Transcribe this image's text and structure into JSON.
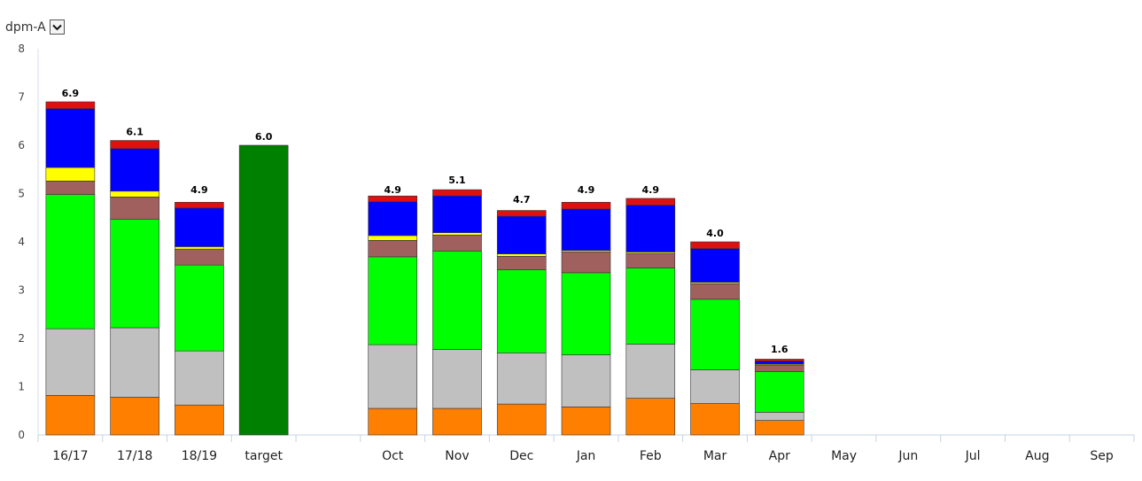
{
  "selector": {
    "label": "dpm-A"
  },
  "chart_data": {
    "type": "bar",
    "stacked": true,
    "categories": [
      "16/17",
      "17/18",
      "18/19",
      "target",
      "",
      "Oct",
      "Nov",
      "Dec",
      "Jan",
      "Feb",
      "Mar",
      "Apr",
      "May",
      "Jun",
      "Jul",
      "Aug",
      "Sep"
    ],
    "ylim": [
      0,
      8
    ],
    "yticks": [
      0,
      1,
      2,
      3,
      4,
      5,
      6,
      7,
      8
    ],
    "grid": false,
    "legend": "none",
    "series": [
      {
        "color": "#ff7f00",
        "values": [
          0.82,
          0.78,
          0.62,
          null,
          null,
          0.55,
          0.55,
          0.64,
          0.58,
          0.76,
          0.65,
          0.3,
          null,
          null,
          null,
          null,
          null
        ]
      },
      {
        "color": "#c0c0c0",
        "values": [
          1.38,
          1.44,
          1.12,
          null,
          null,
          1.32,
          1.22,
          1.06,
          1.08,
          1.12,
          0.7,
          0.17,
          null,
          null,
          null,
          null,
          null
        ]
      },
      {
        "color": "#00ff00",
        "values": [
          2.78,
          2.25,
          1.78,
          null,
          null,
          1.82,
          2.04,
          1.72,
          1.7,
          1.58,
          1.46,
          0.84,
          null,
          null,
          null,
          null,
          null
        ]
      },
      {
        "color": "#a0605e",
        "values": [
          0.28,
          0.46,
          0.33,
          null,
          null,
          0.34,
          0.33,
          0.28,
          0.43,
          0.3,
          0.32,
          0.14,
          null,
          null,
          null,
          null,
          null
        ]
      },
      {
        "color": "#ffff00",
        "values": [
          0.28,
          0.12,
          0.05,
          null,
          null,
          0.1,
          0.05,
          0.05,
          0.03,
          0.03,
          0.03,
          0.02,
          null,
          null,
          null,
          null,
          null
        ]
      },
      {
        "color": "#0000ff",
        "values": [
          1.22,
          0.88,
          0.8,
          null,
          null,
          0.7,
          0.76,
          0.78,
          0.86,
          0.97,
          0.7,
          0.06,
          null,
          null,
          null,
          null,
          null
        ]
      },
      {
        "color": "#e01010",
        "values": [
          0.14,
          0.17,
          0.12,
          null,
          null,
          0.12,
          0.13,
          0.12,
          0.14,
          0.14,
          0.14,
          0.04,
          null,
          null,
          null,
          null,
          null
        ]
      },
      {
        "color": "#008000",
        "values": [
          null,
          null,
          null,
          6.0,
          null,
          null,
          null,
          null,
          null,
          null,
          null,
          null,
          null,
          null,
          null,
          null,
          null
        ]
      }
    ],
    "totals": [
      "6.9",
      "6.1",
      "4.9",
      "6.0",
      "",
      "4.9",
      "5.1",
      "4.7",
      "4.9",
      "4.9",
      "4.0",
      "1.6",
      "",
      "",
      "",
      "",
      ""
    ]
  }
}
